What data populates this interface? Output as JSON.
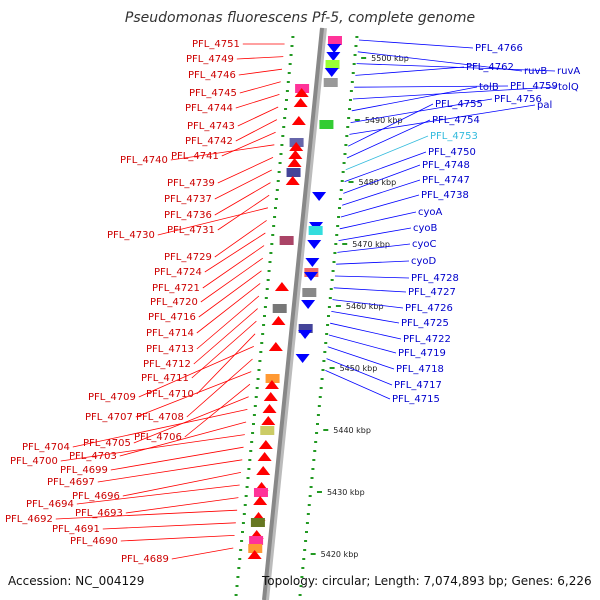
{
  "title": "Pseudomonas fluorescens Pf-5, complete genome",
  "footer": {
    "accession": "Accession: NC_004129",
    "summary": "Topology: circular; Length: 7,074,893 bp; Genes: 6,226"
  },
  "colors": {
    "left_strand": "#ff0000",
    "right_strand": "#0000ff",
    "left_label": "#cc0000",
    "right_label": "#0000cc",
    "highlight_label": "#33bbdd",
    "backbone": "#888888",
    "ruler_dots": "#229922"
  },
  "kbp_ticks": [
    {
      "label": "5500 kbp",
      "kbp": 5500
    },
    {
      "label": "5490 kbp",
      "kbp": 5490
    },
    {
      "label": "5480 kbp",
      "kbp": 5480
    },
    {
      "label": "5470 kbp",
      "kbp": 5470
    },
    {
      "label": "5460 kbp",
      "kbp": 5460
    },
    {
      "label": "5450 kbp",
      "kbp": 5450
    },
    {
      "label": "5440 kbp",
      "kbp": 5440
    },
    {
      "label": "5430 kbp",
      "kbp": 5430
    },
    {
      "label": "5420 kbp",
      "kbp": 5420
    }
  ],
  "left_genes": [
    "PFL_4751",
    "PFL_4749",
    "PFL_4746",
    "PFL_4745",
    "PFL_4744",
    "PFL_4743",
    "PFL_4742",
    "PFL_4741",
    "PFL_4740",
    "PFL_4739",
    "PFL_4737",
    "PFL_4736",
    "PFL_4731",
    "PFL_4730",
    "PFL_4729",
    "PFL_4724",
    "PFL_4721",
    "PFL_4720",
    "PFL_4716",
    "PFL_4714",
    "PFL_4713",
    "PFL_4712",
    "PFL_4711",
    "PFL_4710",
    "PFL_4709",
    "PFL_4708",
    "PFL_4707",
    "PFL_4706",
    "PFL_4705",
    "PFL_4704",
    "PFL_4703",
    "PFL_4700",
    "PFL_4699",
    "PFL_4697",
    "PFL_4696",
    "PFL_4694",
    "PFL_4693",
    "PFL_4692",
    "PFL_4691",
    "PFL_4690",
    "PFL_4689"
  ],
  "right_genes": [
    "PFL_4766",
    "ruvB",
    "ruvA",
    "PFL_4762",
    "PFL_4759",
    "tolQ",
    "tolB",
    "PFL_4756",
    "pal",
    "PFL_4755",
    "PFL_4754",
    "PFL_4753",
    "PFL_4750",
    "PFL_4748",
    "PFL_4747",
    "PFL_4738",
    "cyoA",
    "cyoB",
    "cyoC",
    "cyoD",
    "PFL_4728",
    "PFL_4727",
    "PFL_4726",
    "PFL_4725",
    "PFL_4722",
    "PFL_4719",
    "PFL_4718",
    "PFL_4717",
    "PFL_4715"
  ],
  "highlighted_gene": "PFL_4753"
}
